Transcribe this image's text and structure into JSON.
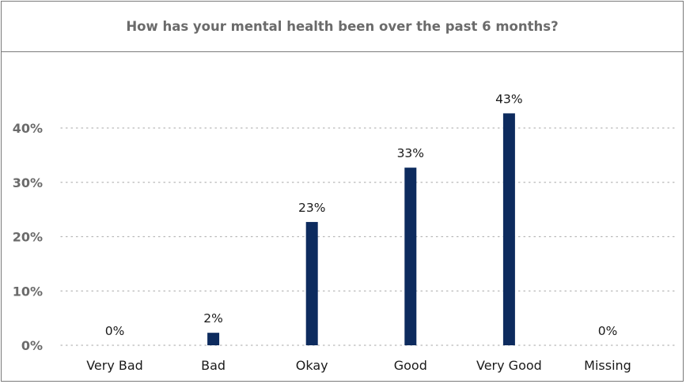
{
  "chart_data": {
    "type": "bar",
    "title": "How has your mental health been over the past 6 months?",
    "categories": [
      "Very Bad",
      "Bad",
      "Okay",
      "Good",
      "Very Good",
      "Missing"
    ],
    "values": [
      0,
      2.3,
      22.7,
      32.7,
      42.7,
      0
    ],
    "data_labels": [
      "0%",
      "2%",
      "23%",
      "33%",
      "43%",
      "0%"
    ],
    "y_ticks": [
      {
        "value": 0,
        "label": "0%"
      },
      {
        "value": 10,
        "label": "10%"
      },
      {
        "value": 20,
        "label": "20%"
      },
      {
        "value": 30,
        "label": "30%"
      },
      {
        "value": 40,
        "label": "40%"
      }
    ],
    "ylim": [
      0,
      40
    ],
    "grid": true,
    "bar_color": "#0d2b5e",
    "grid_color": "#b8b8b8"
  }
}
